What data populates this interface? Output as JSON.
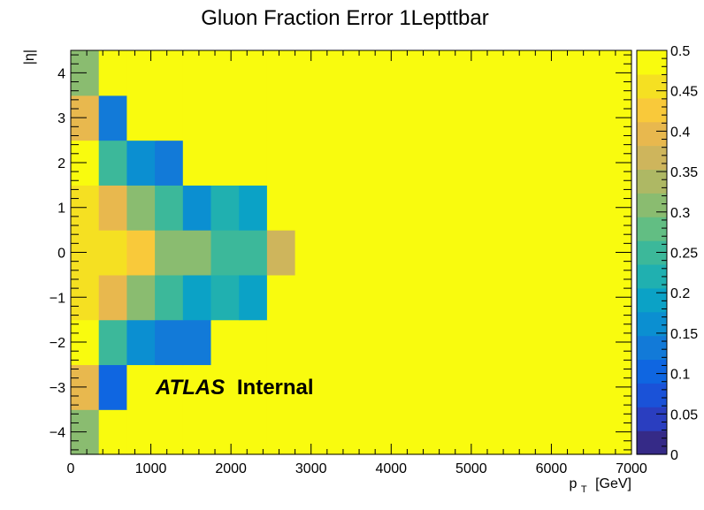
{
  "chart_data": {
    "type": "heatmap",
    "title": "Gluon Fraction Error 1Lepttbar",
    "xlabel": "p",
    "xlabel_subscript": "T",
    "xlabel_unit": "[GeV]",
    "ylabel": "|η|",
    "xlim": [
      0,
      7000
    ],
    "ylim": [
      -4.5,
      4.5
    ],
    "zlim": [
      0,
      0.5
    ],
    "x_ticks": [
      0,
      1000,
      2000,
      3000,
      4000,
      5000,
      6000,
      7000
    ],
    "x_tick_labels": [
      "0",
      "1000",
      "2000",
      "3000",
      "4000",
      "5000",
      "6000",
      "7000"
    ],
    "y_ticks": [
      -4,
      -3,
      -2,
      -1,
      0,
      1,
      2,
      3,
      4
    ],
    "y_tick_labels": [
      "−4",
      "−3",
      "−2",
      "−1",
      "0",
      "1",
      "2",
      "3",
      "4"
    ],
    "z_ticks": [
      0,
      0.05,
      0.1,
      0.15,
      0.2,
      0.25,
      0.3,
      0.35,
      0.4,
      0.45,
      0.5
    ],
    "z_tick_labels": [
      "0",
      "0.05",
      "0.1",
      "0.15",
      "0.2",
      "0.25",
      "0.3",
      "0.35",
      "0.4",
      "0.45",
      "0.5"
    ],
    "x_edges": [
      0,
      350,
      700,
      1050,
      1400,
      1750,
      2100,
      2450,
      2800,
      7000
    ],
    "y_edges": [
      -4.5,
      -3.5,
      -2.5,
      -1.5,
      -0.5,
      0.5,
      1.5,
      2.5,
      3.5,
      4.5
    ],
    "values": [
      [
        0.3,
        0.5,
        0.5,
        0.5,
        0.5,
        0.5,
        0.5,
        0.5,
        0.5
      ],
      [
        0.4,
        0.1,
        0.5,
        0.5,
        0.5,
        0.5,
        0.5,
        0.5,
        0.5
      ],
      [
        0.5,
        0.24,
        0.15,
        0.13,
        0.13,
        0.5,
        0.5,
        0.5,
        0.5
      ],
      [
        0.45,
        0.4,
        0.3,
        0.24,
        0.2,
        0.22,
        0.18,
        0.5,
        0.5
      ],
      [
        0.45,
        0.45,
        0.42,
        0.32,
        0.32,
        0.25,
        0.25,
        0.38,
        0.5
      ],
      [
        0.45,
        0.4,
        0.3,
        0.24,
        0.17,
        0.22,
        0.18,
        0.5,
        0.5
      ],
      [
        0.5,
        0.24,
        0.15,
        0.12,
        0.5,
        0.5,
        0.5,
        0.5,
        0.5
      ],
      [
        0.4,
        0.13,
        0.5,
        0.5,
        0.5,
        0.5,
        0.5,
        0.5,
        0.5
      ],
      [
        0.3,
        0.5,
        0.5,
        0.5,
        0.5,
        0.5,
        0.5,
        0.5,
        0.5
      ]
    ],
    "palette": [
      "#352a87",
      "#2a3ec0",
      "#1a52d8",
      "#0f66e1",
      "#127ad8",
      "#0b8fd1",
      "#0ba2c6",
      "#20b0b0",
      "#3cb89a",
      "#62be83",
      "#8abc70",
      "#aeb864",
      "#ceb55c",
      "#e8b84e",
      "#f9c93a",
      "#f5e022",
      "#f9fb0e"
    ],
    "annotation_bold": "ATLAS",
    "annotation_rest": "Internal",
    "grid": false,
    "colorbar": "right"
  }
}
